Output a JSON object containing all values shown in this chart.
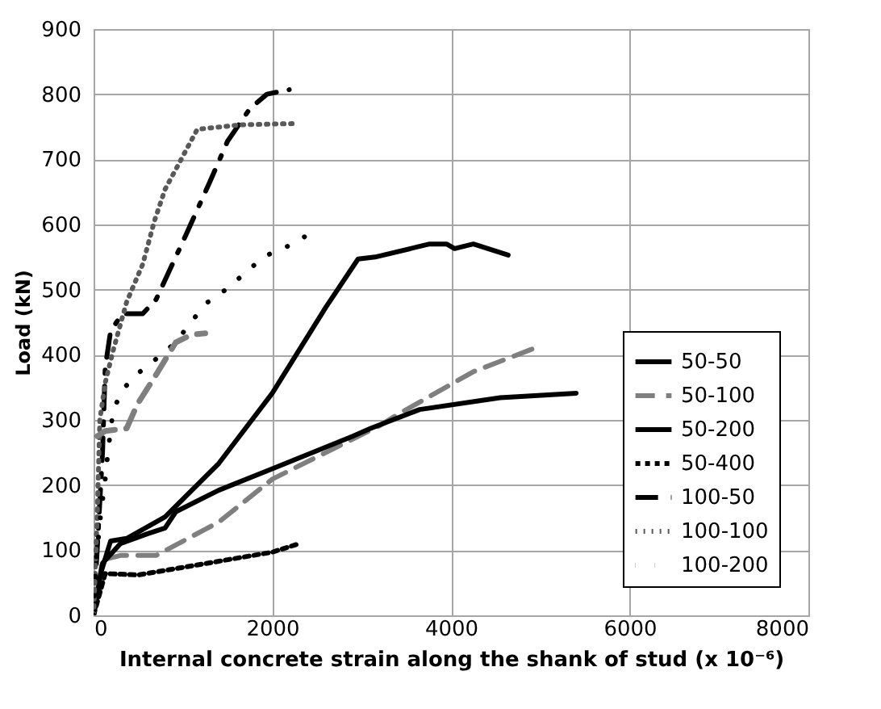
{
  "chart_data": {
    "type": "line",
    "xlabel": "Internal concrete strain along the  shank of stud  (x 10⁻⁶)",
    "ylabel": "Load (kN)",
    "xlim": [
      0,
      8000
    ],
    "xticks": [
      0,
      2000,
      4000,
      6000,
      8000
    ],
    "ylim": [
      0,
      900
    ],
    "yticks": [
      0,
      100,
      200,
      300,
      400,
      500,
      600,
      700,
      800,
      900
    ],
    "grid": true,
    "legend": "bottom right",
    "series": [
      {
        "name": "50-50",
        "color": "#000000",
        "line_style": "solid",
        "x": [
          0,
          70,
          190,
          370,
          800,
          1400,
          2000,
          2600,
          2960,
          3150,
          3760,
          3950,
          4040,
          4250,
          4640
        ],
        "values": [
          0,
          60,
          114,
          118,
          151,
          233,
          341,
          473,
          547,
          550,
          570,
          570,
          563,
          570,
          553
        ]
      },
      {
        "name": "50-100",
        "color": "#7f7f7f",
        "line_style": "dashed",
        "x": [
          0,
          100,
          300,
          700,
          1400,
          2000,
          2600,
          3200,
          3400,
          4250,
          4950
        ],
        "values": [
          0,
          85,
          92,
          92,
          143,
          209,
          250,
          291,
          308,
          374,
          411
        ]
      },
      {
        "name": "50-200",
        "color": "#000000",
        "line_style": "solid",
        "x": [
          0,
          100,
          300,
          600,
          800,
          920,
          1400,
          2000,
          2900,
          3100,
          3650,
          4550,
          5400
        ],
        "values": [
          0,
          80,
          110,
          125,
          134,
          159,
          192,
          225,
          275,
          287,
          316,
          334,
          341
        ]
      },
      {
        "name": "50-400",
        "color": "#000000",
        "line_style": "dashed",
        "x": [
          0,
          130,
          500,
          2000,
          2300
        ],
        "values": [
          0,
          64,
          62,
          97,
          110
        ]
      },
      {
        "name": "100-50",
        "color": "#000000",
        "line_style": "dashed",
        "x": [
          0,
          100,
          130,
          190,
          320,
          550,
          700,
          1000,
          1300,
          1500,
          1750,
          1940,
          2190
        ],
        "values": [
          0,
          250,
          380,
          436,
          463,
          463,
          485,
          574,
          665,
          728,
          778,
          800,
          807
        ]
      },
      {
        "name": "100-100",
        "color": "#595959",
        "line_style": "dotted",
        "x": [
          0,
          40,
          70,
          130,
          220,
          370,
          550,
          680,
          800,
          980,
          1160,
          1640,
          2270
        ],
        "values": [
          0,
          150,
          300,
          357,
          407,
          481,
          539,
          605,
          654,
          700,
          746,
          753,
          755
        ]
      },
      {
        "name": "100-200",
        "color": "#000000",
        "line_style": "dotted",
        "x": [
          0,
          20,
          70,
          130,
          160,
          220,
          340,
          520,
          740,
          920,
          1100,
          1280,
          1490,
          1700,
          1910,
          2150,
          2360
        ],
        "values": [
          0,
          68,
          143,
          209,
          250,
          316,
          349,
          374,
          398,
          419,
          452,
          481,
          501,
          526,
          551,
          565,
          581
        ]
      },
      {
        "color": "#7f7f7f",
        "line_style": "dashed",
        "x": [
          40,
          130,
          370,
          490,
          680,
          920,
          1100,
          1250
        ],
        "values": [
          275,
          283,
          287,
          324,
          365,
          419,
          431,
          433
        ]
      }
    ]
  }
}
